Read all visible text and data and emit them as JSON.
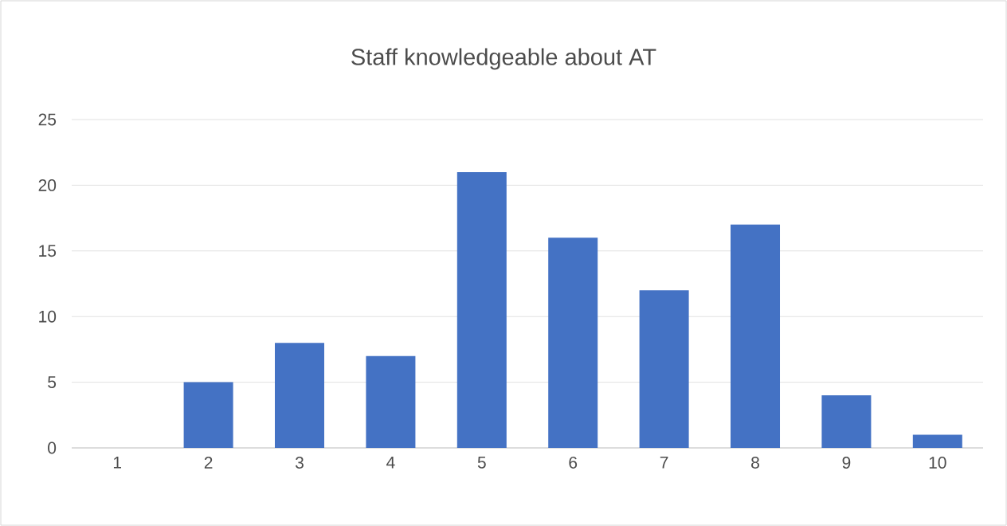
{
  "chart_data": {
    "type": "bar",
    "title": "Staff knowledgeable about AT",
    "categories": [
      "1",
      "2",
      "3",
      "4",
      "5",
      "6",
      "7",
      "8",
      "9",
      "10"
    ],
    "values": [
      0,
      5,
      8,
      7,
      21,
      16,
      12,
      17,
      4,
      1
    ],
    "color": "#4472c4",
    "ylim": [
      0,
      25
    ],
    "yticks": [
      0,
      5,
      10,
      15,
      20,
      25
    ],
    "grid": "y"
  }
}
